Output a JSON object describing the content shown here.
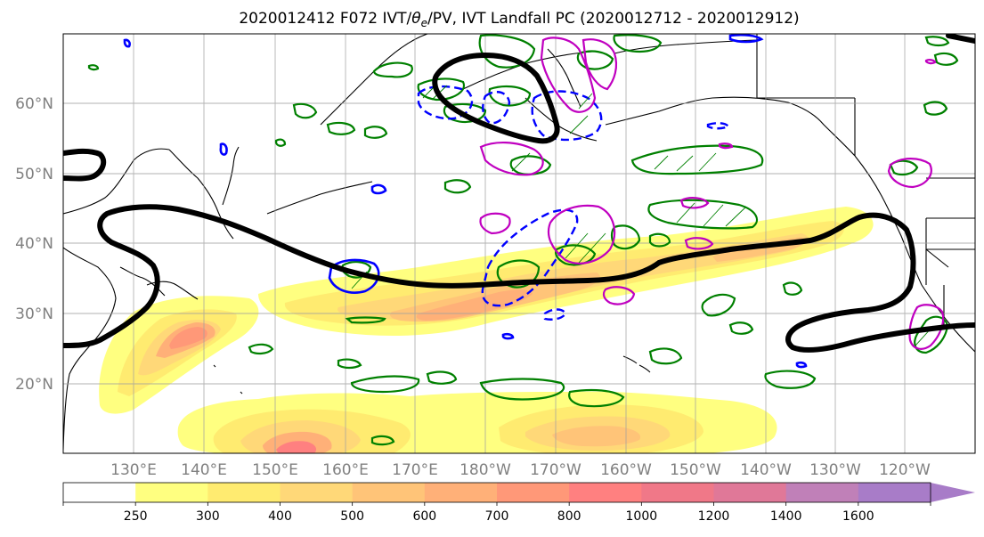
{
  "title": {
    "prefix": "2020012412 F072 IVT/",
    "theta": "θ",
    "theta_sub": "e",
    "suffix": "/PV, IVT Landfall PC (2020012712 - 2020012912)"
  },
  "lat_labels": [
    "60°N",
    "50°N",
    "40°N",
    "30°N",
    "20°N"
  ],
  "lon_labels": [
    "130°E",
    "140°E",
    "150°E",
    "160°E",
    "170°E",
    "180°W",
    "170°W",
    "160°W",
    "150°W",
    "140°W",
    "130°W",
    "120°W"
  ],
  "colorbar": {
    "levels": [
      "250",
      "300",
      "400",
      "500",
      "600",
      "700",
      "800",
      "1000",
      "1200",
      "1400",
      "1600"
    ],
    "colors": [
      "#ffffff",
      "#ffff80",
      "#ffeb70",
      "#ffd878",
      "#ffc478",
      "#ffb078",
      "#ff9878",
      "#ff8080",
      "#f07888",
      "#e07898",
      "#c080b8",
      "#a87cc8"
    ]
  },
  "legend_colors": {
    "ivt_pc_contour": "#000000",
    "positive_contour": "#008000",
    "negative_contour": "#0000ff",
    "pv_contour": "#c000c0"
  }
}
